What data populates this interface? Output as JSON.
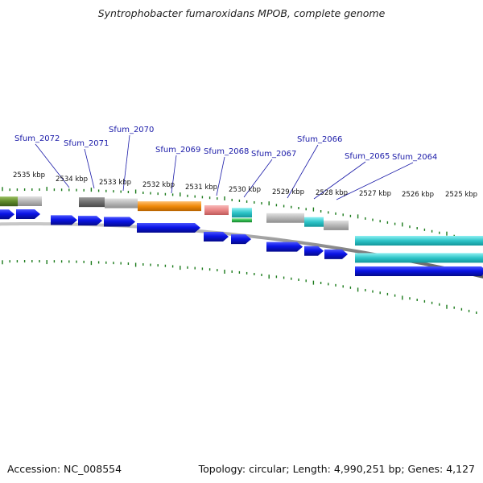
{
  "title": "Syntrophobacter fumaroxidans MPOB, complete genome",
  "footer": {
    "accession": "Accession: NC_008554",
    "summary": "Topology: circular; Length: 4,990,251 bp; Genes: 4,127"
  },
  "scale_labels": [
    "2535 kbp",
    "2534 kbp",
    "2533 kbp",
    "2532 kbp",
    "2531 kbp",
    "2530 kbp",
    "2529 kbp",
    "2528 kbp",
    "2527 kbp",
    "2526 kbp",
    "2525 kbp"
  ],
  "gene_labels": [
    "Sfum_2072",
    "Sfum_2071",
    "Sfum_2070",
    "Sfum_2069",
    "Sfum_2068",
    "Sfum_2067",
    "Sfum_2066",
    "Sfum_2065",
    "Sfum_2064"
  ],
  "colors": {
    "cds_arrow": "#0a14e6",
    "gene_label": "#1a1aa8",
    "tick": "#1a7a1a",
    "backbone": "#808080",
    "feature_gray": "#b4b4b4",
    "feature_dark_gray": "#6e6e6e",
    "feature_orange": "#f08a0a",
    "feature_pink": "#e98686",
    "feature_cyan": "#2ec4c8",
    "feature_green": "#2db84a",
    "feature_olive": "#5f8a2a"
  }
}
